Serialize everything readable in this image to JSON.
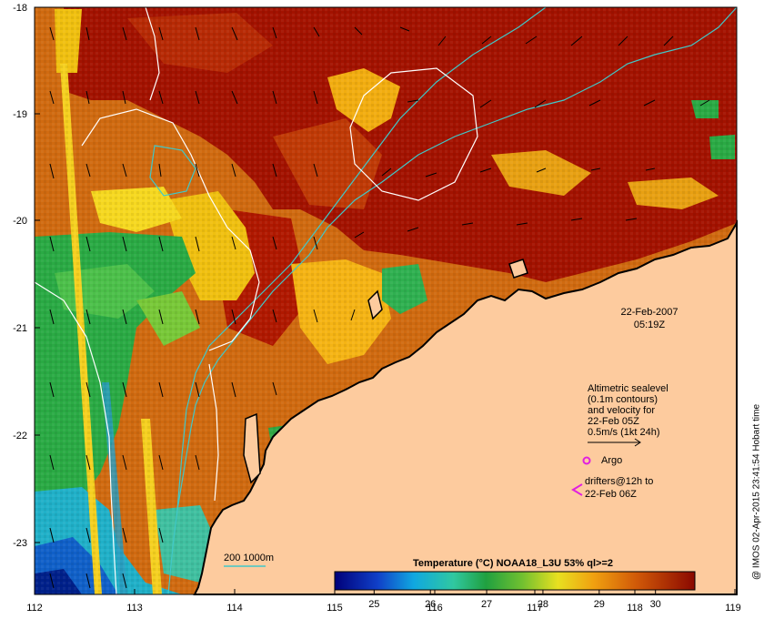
{
  "timestamp": {
    "date": "22-Feb-2007",
    "time": "05:19Z"
  },
  "legend": {
    "altimetry_lines": [
      "Altimetric sealevel",
      "(0.1m contours)",
      "and velocity for",
      "22-Feb 05Z",
      "0.5m/s (1kt 24h)"
    ],
    "argo_label": "Argo",
    "drifters_lines": [
      "drifters@12h to",
      "22-Feb 06Z"
    ],
    "isobath_label": "200  1000m"
  },
  "colorbar": {
    "title": "Temperature (°C) NOAA18_L3U 53% ql>=2",
    "ticks": [
      "25",
      "26",
      "27",
      "28",
      "29",
      "30"
    ],
    "range": [
      24.3,
      30.7
    ]
  },
  "axes": {
    "x_ticks": [
      "112",
      "113",
      "114",
      "115",
      "116",
      "117",
      "118",
      "119"
    ],
    "y_ticks": [
      "-18",
      "-19",
      "-20",
      "-21",
      "-22",
      "-23"
    ],
    "lon_range": [
      112,
      119
    ],
    "lat_range": [
      -23.6,
      -18
    ]
  },
  "credit": "@ IMOS 02-Apr-2015 23:41:54 Hobart time",
  "colors": {
    "land": "#fdcb9e",
    "hot": "#a31200",
    "warm": "#d4650a",
    "mid": "#f2ad10",
    "green": "#2aaa44",
    "argo": "#e020e0",
    "isobath": "#40c8c8"
  },
  "icons": {
    "drifter_marker": "magenta-chevron-icon",
    "argo_marker": "magenta-circle-icon"
  }
}
